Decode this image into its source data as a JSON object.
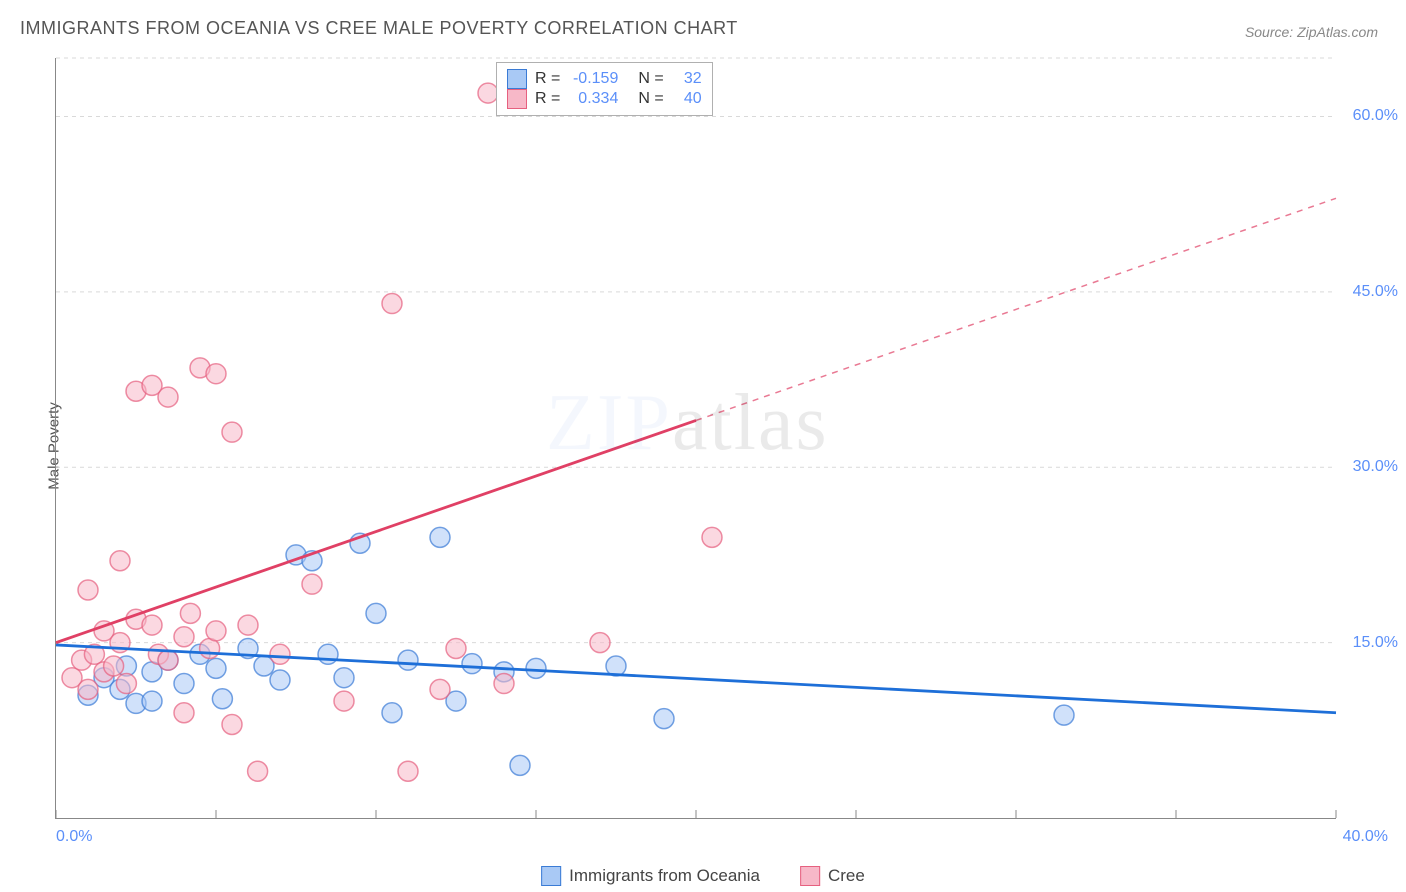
{
  "title": "IMMIGRANTS FROM OCEANIA VS CREE MALE POVERTY CORRELATION CHART",
  "source": "Source: ZipAtlas.com",
  "ylabel": "Male Poverty",
  "watermark": {
    "part1": "ZIP",
    "part2": "atlas"
  },
  "chart": {
    "type": "scatter",
    "background_color": "#ffffff",
    "grid_color": "#d9d9d9",
    "axis_color": "#888888",
    "xlim": [
      0,
      40
    ],
    "ylim": [
      0,
      65
    ],
    "x_ticks": [
      0,
      10,
      20,
      30,
      40
    ],
    "x_tick_labels": [
      "0.0%",
      "",
      "",
      "",
      "40.0%"
    ],
    "x_minor_ticks": [
      5,
      15,
      25,
      35
    ],
    "y_ticks": [
      15,
      30,
      45,
      60
    ],
    "y_tick_labels": [
      "15.0%",
      "30.0%",
      "45.0%",
      "60.0%"
    ],
    "marker_radius": 10,
    "marker_opacity": 0.55,
    "marker_stroke_width": 1.5,
    "trend_line_width": 2.8,
    "series": [
      {
        "key": "oceania",
        "label": "Immigrants from Oceania",
        "color_fill": "#a9c9f5",
        "color_stroke": "#3a7bd5",
        "line_color": "#1e6fd8",
        "R": "-0.159",
        "N": "32",
        "trend": {
          "x1": 0,
          "y1": 14.8,
          "x2": 40,
          "y2": 9.0,
          "solid_until": 40
        },
        "points": [
          [
            1.0,
            10.5
          ],
          [
            1.5,
            12.0
          ],
          [
            2.0,
            11.0
          ],
          [
            2.2,
            13.0
          ],
          [
            2.5,
            9.8
          ],
          [
            3.0,
            12.5
          ],
          [
            3.0,
            10.0
          ],
          [
            3.5,
            13.5
          ],
          [
            4.0,
            11.5
          ],
          [
            4.5,
            14.0
          ],
          [
            5.0,
            12.8
          ],
          [
            5.2,
            10.2
          ],
          [
            6.0,
            14.5
          ],
          [
            6.5,
            13.0
          ],
          [
            7.0,
            11.8
          ],
          [
            7.5,
            22.5
          ],
          [
            8.0,
            22.0
          ],
          [
            8.5,
            14.0
          ],
          [
            9.0,
            12.0
          ],
          [
            9.5,
            23.5
          ],
          [
            10.0,
            17.5
          ],
          [
            10.5,
            9.0
          ],
          [
            11.0,
            13.5
          ],
          [
            12.0,
            24.0
          ],
          [
            12.5,
            10.0
          ],
          [
            13.0,
            13.2
          ],
          [
            14.0,
            12.5
          ],
          [
            14.5,
            4.5
          ],
          [
            15.0,
            12.8
          ],
          [
            17.5,
            13.0
          ],
          [
            19.0,
            8.5
          ],
          [
            31.5,
            8.8
          ]
        ]
      },
      {
        "key": "cree",
        "label": "Cree",
        "color_fill": "#f7b8c8",
        "color_stroke": "#e6607f",
        "line_color": "#e04065",
        "R": "0.334",
        "N": "40",
        "trend": {
          "x1": 0,
          "y1": 15.0,
          "x2": 40,
          "y2": 53.0,
          "solid_until": 20
        },
        "points": [
          [
            0.5,
            12.0
          ],
          [
            0.8,
            13.5
          ],
          [
            1.0,
            11.0
          ],
          [
            1.0,
            19.5
          ],
          [
            1.2,
            14.0
          ],
          [
            1.5,
            12.5
          ],
          [
            1.5,
            16.0
          ],
          [
            1.8,
            13.0
          ],
          [
            2.0,
            15.0
          ],
          [
            2.0,
            22.0
          ],
          [
            2.2,
            11.5
          ],
          [
            2.5,
            17.0
          ],
          [
            2.5,
            36.5
          ],
          [
            3.0,
            16.5
          ],
          [
            3.0,
            37.0
          ],
          [
            3.2,
            14.0
          ],
          [
            3.5,
            13.5
          ],
          [
            3.5,
            36.0
          ],
          [
            4.0,
            15.5
          ],
          [
            4.0,
            9.0
          ],
          [
            4.2,
            17.5
          ],
          [
            4.5,
            38.5
          ],
          [
            4.8,
            14.5
          ],
          [
            5.0,
            38.0
          ],
          [
            5.0,
            16.0
          ],
          [
            5.5,
            8.0
          ],
          [
            5.5,
            33.0
          ],
          [
            6.0,
            16.5
          ],
          [
            6.3,
            4.0
          ],
          [
            7.0,
            14.0
          ],
          [
            8.0,
            20.0
          ],
          [
            9.0,
            10.0
          ],
          [
            10.5,
            44.0
          ],
          [
            11.0,
            4.0
          ],
          [
            12.0,
            11.0
          ],
          [
            12.5,
            14.5
          ],
          [
            13.5,
            62.0
          ],
          [
            14.0,
            11.5
          ],
          [
            17.0,
            15.0
          ],
          [
            20.5,
            24.0
          ]
        ]
      }
    ]
  },
  "legend_top": {
    "rows": [
      {
        "swatch_fill": "#a9c9f5",
        "swatch_stroke": "#3a7bd5",
        "r_label": "R =",
        "r_val": "-0.159",
        "n_label": "N =",
        "n_val": "32"
      },
      {
        "swatch_fill": "#f7b8c8",
        "swatch_stroke": "#e6607f",
        "r_label": "R =",
        "r_val": "0.334",
        "n_label": "N =",
        "n_val": "40"
      }
    ]
  },
  "legend_bottom": {
    "items": [
      {
        "swatch_fill": "#a9c9f5",
        "swatch_stroke": "#3a7bd5",
        "label": "Immigrants from Oceania"
      },
      {
        "swatch_fill": "#f7b8c8",
        "swatch_stroke": "#e6607f",
        "label": "Cree"
      }
    ]
  }
}
